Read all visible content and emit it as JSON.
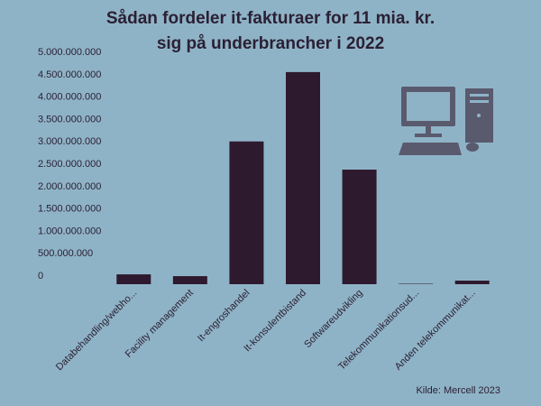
{
  "chart_data": {
    "type": "bar",
    "title": [
      "Sådan fordeler it-fakturaer for 11 mia. kr.",
      "sig på underbrancher i 2022"
    ],
    "categories": [
      "Databehandling/webho...",
      "Facility management",
      "It-engroshandel",
      "It-konsulentbistand",
      "Softwareudvikling",
      "Telekommunikationsud...",
      "Anden telekommunikat..."
    ],
    "values": [
      220000000,
      180000000,
      3190000000,
      4740000000,
      2560000000,
      10000000,
      80000000
    ],
    "color": "#2e1a2e",
    "ylim": [
      0,
      5000000000
    ],
    "yticks": [
      0,
      {
        "value": 500000000,
        "label": "500.000.000"
      },
      {
        "value": 1000000000,
        "label": "1.000.000.000"
      },
      {
        "value": 1500000000,
        "label": "1.500.000.000"
      },
      {
        "value": 2000000000,
        "label": "2.000.000.000"
      },
      {
        "value": 2500000000,
        "label": "2.500.000.000"
      },
      {
        "value": 3000000000,
        "label": "3.000.000.000"
      },
      {
        "value": 3500000000,
        "label": "3.500.000.000"
      },
      {
        "value": 4000000000,
        "label": "4.000.000.000"
      },
      {
        "value": 4500000000,
        "label": "4.500.000.000"
      },
      {
        "value": 5000000000,
        "label": "5.000.000.000"
      }
    ],
    "grid": false,
    "source": "Kilde: Mercell 2023"
  }
}
